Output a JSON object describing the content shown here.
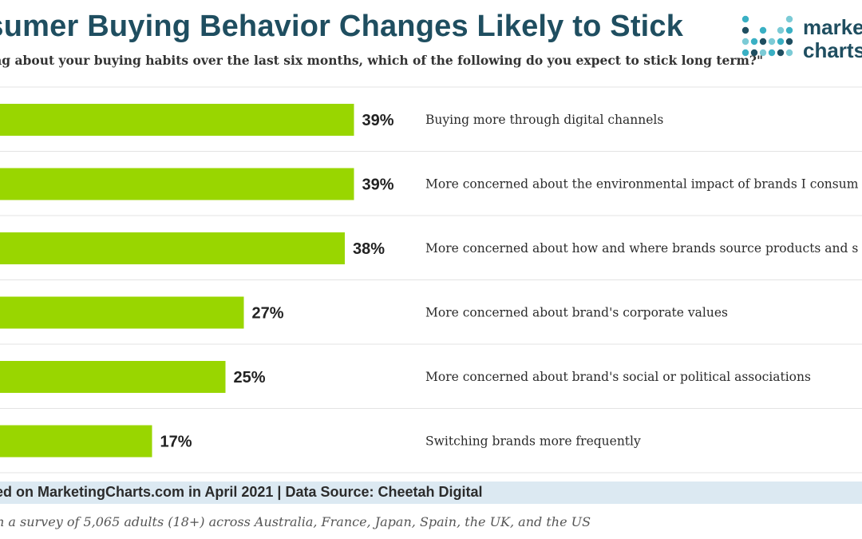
{
  "header": {
    "title": "nsumer Buying Behavior Changes Likely to Stick",
    "subtitle": "ng about your buying habits over the last six months, which of the following do you expect to stick long term?\""
  },
  "logo": {
    "line1": "marke",
    "line2": "charts",
    "dot_colors": [
      "#3ab0c4",
      "#1f4e60",
      "#7ccbd6"
    ]
  },
  "chart_data": {
    "type": "bar",
    "orientation": "horizontal",
    "categories": [
      "Buying more through digital channels",
      "More concerned about the environmental impact of brands I consum",
      "More concerned about how and where brands source products and s",
      "More concerned about brand's corporate values",
      "More concerned about brand's social or political associations",
      "Switching brands more frequently"
    ],
    "values": [
      39,
      39,
      38,
      27,
      25,
      17
    ],
    "value_labels": [
      "39%",
      "39%",
      "38%",
      "27%",
      "25%",
      "17%"
    ],
    "unit": "%",
    "xlim": [
      0,
      40
    ],
    "bar_color": "#99d600",
    "grid": false
  },
  "footer": {
    "source": "ed on MarketingCharts.com in April 2021 | Data Source: Cheetah Digital",
    "note": "n a survey of 5,065 adults (18+) across Australia, France, Japan, Spain, the UK, and the US"
  }
}
